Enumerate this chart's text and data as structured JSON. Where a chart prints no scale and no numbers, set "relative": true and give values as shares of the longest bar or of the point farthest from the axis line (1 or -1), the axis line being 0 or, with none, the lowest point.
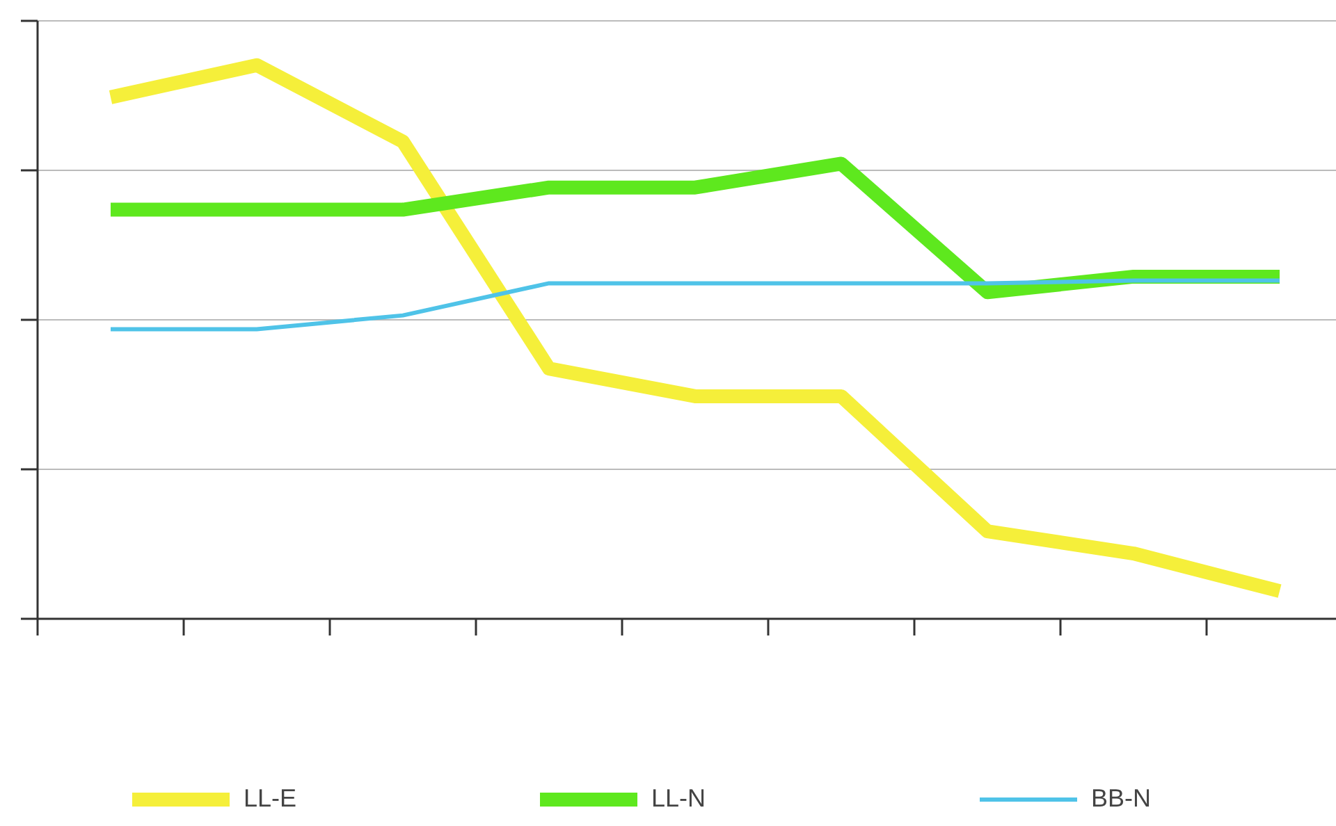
{
  "chart_data": {
    "type": "line",
    "relative": true,
    "grid": true,
    "legend": "bottom",
    "line_style": "solid",
    "categories": [
      null,
      null,
      null,
      null,
      null,
      null,
      null,
      null,
      null
    ],
    "series": [
      {
        "name": "LL-E",
        "color": "#f5ef3a",
        "values": [
          0.942,
          1.0,
          0.862,
          0.452,
          0.402,
          0.402,
          0.158,
          0.118,
          0.05
        ]
      },
      {
        "name": "LL-N",
        "color": "#5ee81e",
        "values": [
          0.739,
          0.739,
          0.739,
          0.779,
          0.779,
          0.822,
          0.59,
          0.618,
          0.618
        ]
      },
      {
        "name": "BB-N",
        "color": "#4fc3e8",
        "values": [
          0.523,
          0.523,
          0.548,
          0.606,
          0.606,
          0.606,
          0.606,
          0.611,
          0.611
        ]
      }
    ]
  }
}
